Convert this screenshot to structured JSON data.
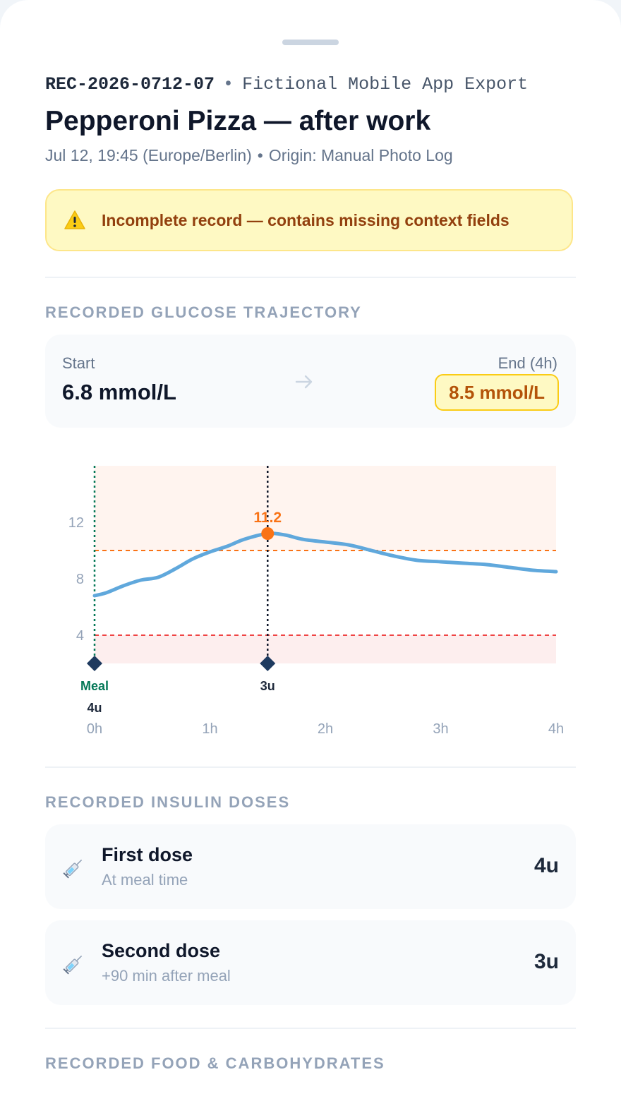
{
  "header": {
    "record_id": "REC-2026-0712-07",
    "separator": "•",
    "source": "Fictional Mobile App Export",
    "title": "Pepperoni Pizza — after work",
    "datetime": "Jul 12, 19:45 (Europe/Berlin)",
    "origin": "Origin: Manual Photo Log"
  },
  "alert": {
    "icon": "warning-icon",
    "text": "Incomplete record — contains missing context fields"
  },
  "trajectory": {
    "section_label": "RECORDED GLUCOSE TRAJECTORY",
    "start_label": "Start",
    "start_value": "6.8 mmol/L",
    "end_label": "End (4h)",
    "end_value": "8.5 mmol/L"
  },
  "chart_data": {
    "type": "line",
    "x_unit": "h",
    "y_unit": "mmol/L",
    "x_ticks": [
      "0h",
      "1h",
      "2h",
      "3h",
      "4h"
    ],
    "y_ticks": [
      "4",
      "8",
      "12"
    ],
    "xlim": [
      0,
      4
    ],
    "ylim": [
      2,
      16
    ],
    "series": [
      {
        "x": [
          0,
          0.1,
          0.25,
          0.4,
          0.55,
          0.7,
          0.85,
          1.0,
          1.15,
          1.3,
          1.5,
          1.65,
          1.8,
          2.0,
          2.2,
          2.4,
          2.6,
          2.8,
          3.0,
          3.2,
          3.4,
          3.6,
          3.8,
          4.0
        ],
        "y": [
          6.8,
          7.0,
          7.5,
          7.9,
          8.1,
          8.7,
          9.4,
          9.9,
          10.3,
          10.8,
          11.2,
          11.1,
          10.8,
          10.6,
          10.4,
          10.0,
          9.6,
          9.3,
          9.2,
          9.1,
          9.0,
          8.8,
          8.6,
          8.5
        ]
      }
    ],
    "thresholds": [
      {
        "kind": "high",
        "value": 10,
        "color": "#f97316"
      },
      {
        "kind": "low",
        "value": 4,
        "color": "#ef4444"
      }
    ],
    "peak": {
      "x": 1.5,
      "y": 11.2,
      "label": "11.2",
      "color": "#f97316"
    },
    "events": [
      {
        "x": 0,
        "label": "Meal",
        "dose": "4u",
        "color": "#047857"
      },
      {
        "x": 1.5,
        "label": "",
        "dose": "3u",
        "color": "#0f172a"
      }
    ],
    "line_color": "#60a8dc",
    "grid": false
  },
  "insulin": {
    "section_label": "RECORDED INSULIN DOSES",
    "doses": [
      {
        "icon": "syringe-icon",
        "name": "First dose",
        "sub": "At meal time",
        "value": "4u"
      },
      {
        "icon": "syringe-icon",
        "name": "Second dose",
        "sub": "+90 min after meal",
        "value": "3u"
      }
    ]
  },
  "food": {
    "section_label": "RECORDED FOOD & CARBOHYDRATES"
  }
}
